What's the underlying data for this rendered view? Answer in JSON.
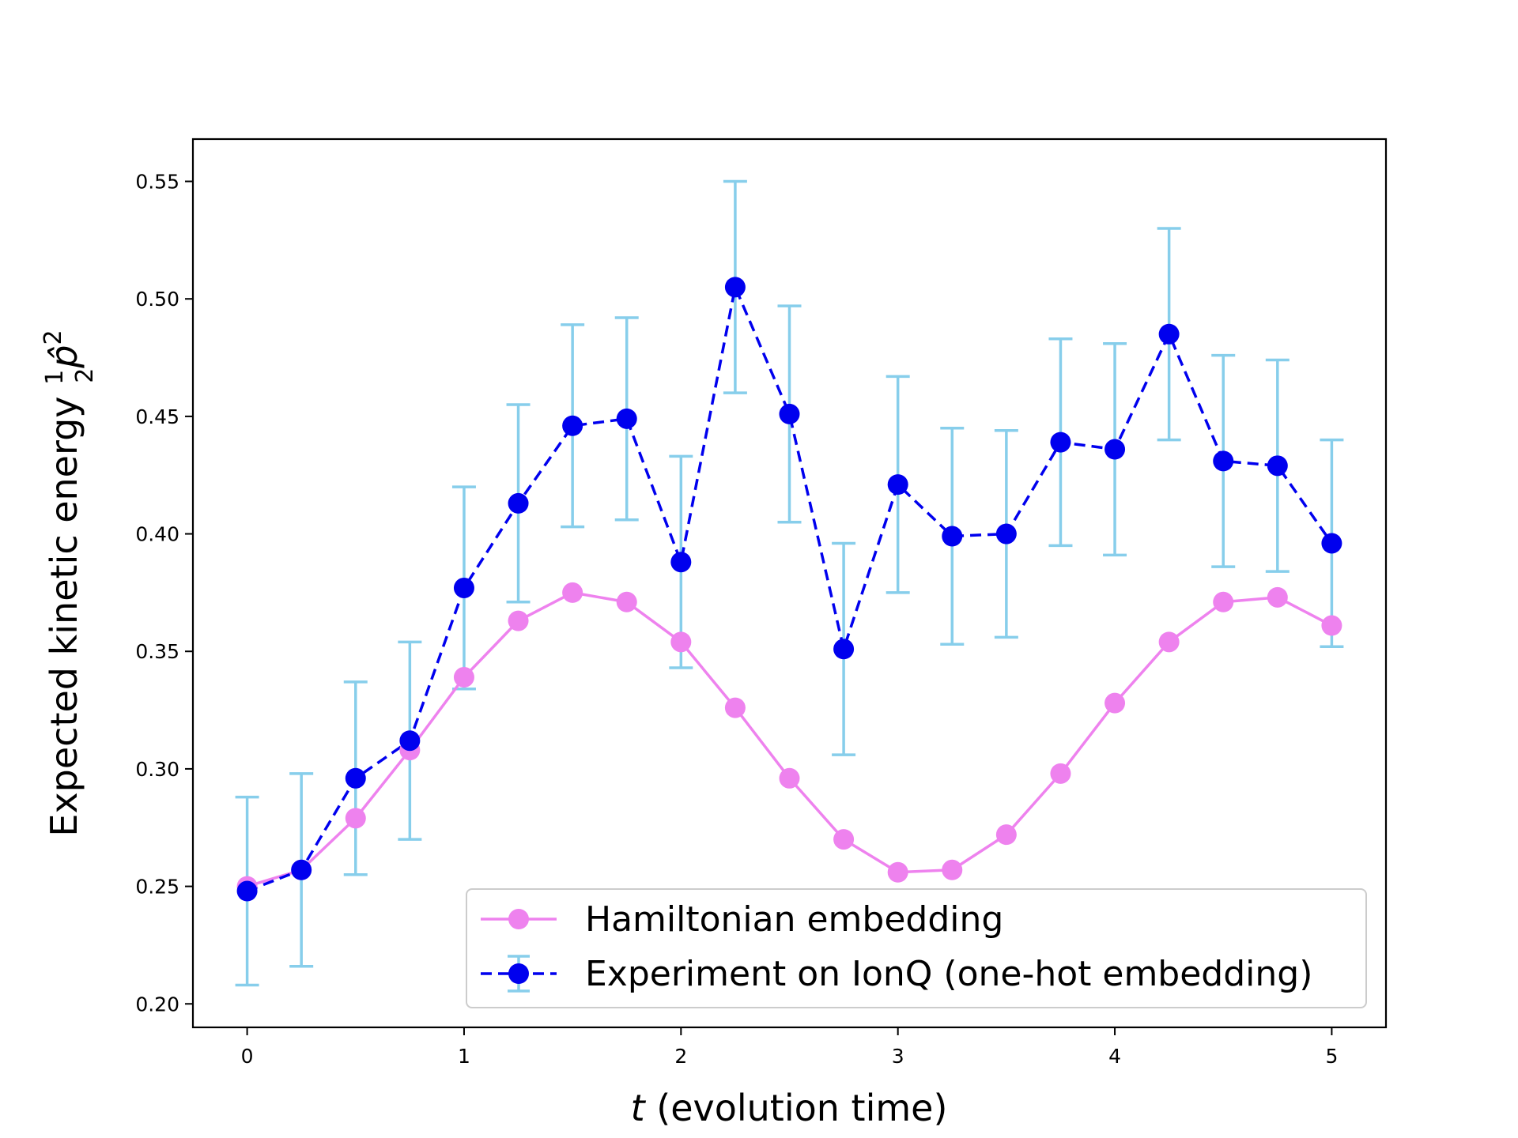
{
  "chart_data": {
    "type": "line",
    "xlabel": "t (evolution time)",
    "ylabel": "Expected kinetic energy ½p̂²",
    "xlim": [
      -0.25,
      5.25
    ],
    "ylim": [
      0.19,
      0.568
    ],
    "xticks": [
      0,
      1,
      2,
      3,
      4,
      5
    ],
    "yticks": [
      0.2,
      0.25,
      0.3,
      0.35,
      0.4,
      0.45,
      0.5,
      0.55
    ],
    "xtick_labels": [
      "0",
      "1",
      "2",
      "3",
      "4",
      "5"
    ],
    "ytick_labels": [
      "0.20",
      "0.25",
      "0.30",
      "0.35",
      "0.40",
      "0.45",
      "0.50",
      "0.55"
    ],
    "grid": false,
    "legend_position": "lower-right",
    "x": [
      0,
      0.25,
      0.5,
      0.75,
      1,
      1.25,
      1.5,
      1.75,
      2,
      2.25,
      2.5,
      2.75,
      3,
      3.25,
      3.5,
      3.75,
      4,
      4.25,
      4.5,
      4.75,
      5
    ],
    "series": [
      {
        "name": "Hamiltonian embedding",
        "style": "solid",
        "color": "#ee82ee",
        "values": [
          0.25,
          0.257,
          0.279,
          0.308,
          0.339,
          0.363,
          0.375,
          0.371,
          0.354,
          0.326,
          0.296,
          0.27,
          0.256,
          0.257,
          0.272,
          0.298,
          0.328,
          0.354,
          0.371,
          0.373,
          0.361
        ]
      },
      {
        "name": "Experiment on IonQ (one-hot embedding)",
        "style": "dashed",
        "color": "#0000ee",
        "error_color": "#87ceeb",
        "values": [
          0.248,
          0.257,
          0.296,
          0.312,
          0.377,
          0.413,
          0.446,
          0.449,
          0.388,
          0.505,
          0.451,
          0.351,
          0.421,
          0.399,
          0.4,
          0.439,
          0.436,
          0.485,
          0.431,
          0.429,
          0.396
        ],
        "errors": [
          0.04,
          0.041,
          0.041,
          0.042,
          0.043,
          0.042,
          0.043,
          0.043,
          0.045,
          0.045,
          0.046,
          0.045,
          0.046,
          0.046,
          0.044,
          0.044,
          0.045,
          0.045,
          0.045,
          0.045,
          0.044
        ]
      }
    ]
  }
}
